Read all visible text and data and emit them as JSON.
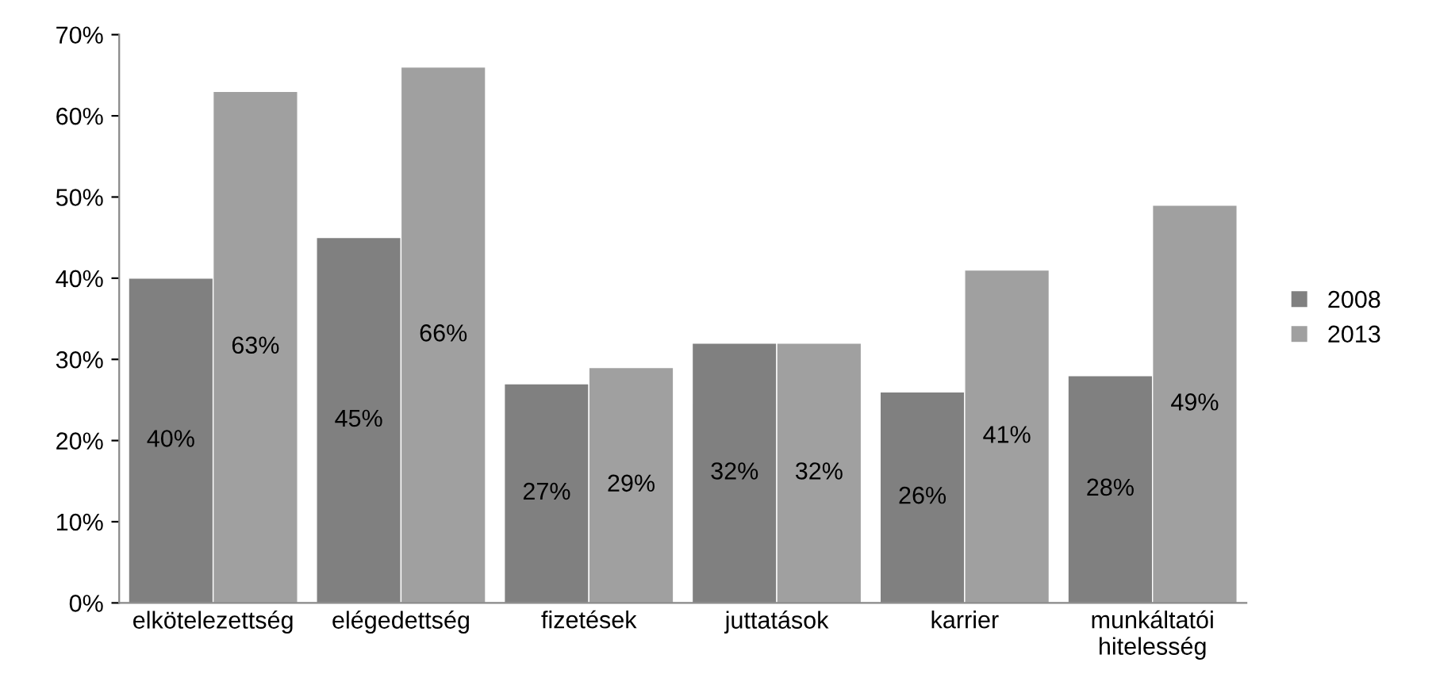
{
  "chart_data": {
    "type": "bar",
    "categories": [
      "elkötelezettség",
      "elégedettség",
      "fizetések",
      "juttatások",
      "karrier",
      "munkáltatói\nhitelesség"
    ],
    "series": [
      {
        "name": "2008",
        "color": "#808080",
        "values": [
          40,
          45,
          27,
          32,
          26,
          28
        ],
        "value_labels": [
          "40%",
          "45%",
          "27%",
          "32%",
          "26%",
          "28%"
        ]
      },
      {
        "name": "2013",
        "color": "#a0a0a0",
        "values": [
          63,
          66,
          29,
          32,
          41,
          49
        ],
        "value_labels": [
          "63%",
          "66%",
          "29%",
          "32%",
          "41%",
          "49%"
        ]
      }
    ],
    "ylim": [
      0,
      70
    ],
    "yticks": [
      {
        "value": 0,
        "label": "0%"
      },
      {
        "value": 10,
        "label": "10%"
      },
      {
        "value": 20,
        "label": "20%"
      },
      {
        "value": 30,
        "label": "30%"
      },
      {
        "value": 40,
        "label": "40%"
      },
      {
        "value": 50,
        "label": "50%"
      },
      {
        "value": 60,
        "label": "60%"
      },
      {
        "value": 70,
        "label": "70%"
      }
    ],
    "legend": "right",
    "grid": false
  }
}
